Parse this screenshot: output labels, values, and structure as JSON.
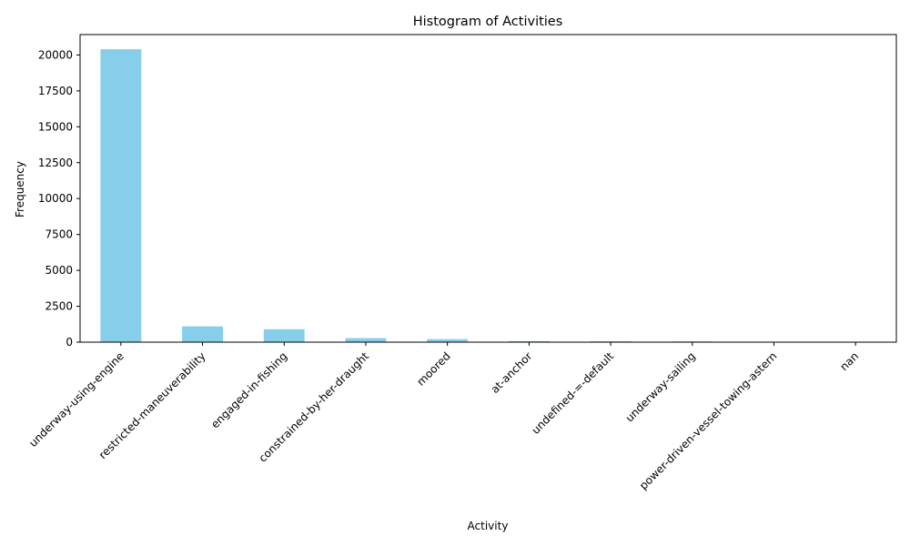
{
  "chart_data": {
    "type": "bar",
    "title": "Histogram of Activities",
    "xlabel": "Activity",
    "ylabel": "Frequency",
    "categories": [
      "underway-using-engine",
      "restricted-maneuverability",
      "engaged-in-fishing",
      "constrained-by-her-draught",
      "moored",
      "at-anchor",
      "undefined-=-default",
      "underway-sailing",
      "power-driven-vessel-towing-astern",
      "nan"
    ],
    "values": [
      20400,
      1100,
      900,
      280,
      210,
      70,
      60,
      50,
      5,
      2
    ],
    "ylim": [
      0,
      21420
    ],
    "yticks": [
      0,
      2500,
      5000,
      7500,
      10000,
      12500,
      15000,
      17500,
      20000
    ],
    "bar_color": "#87ceeb",
    "grid": false,
    "legend": "none"
  }
}
